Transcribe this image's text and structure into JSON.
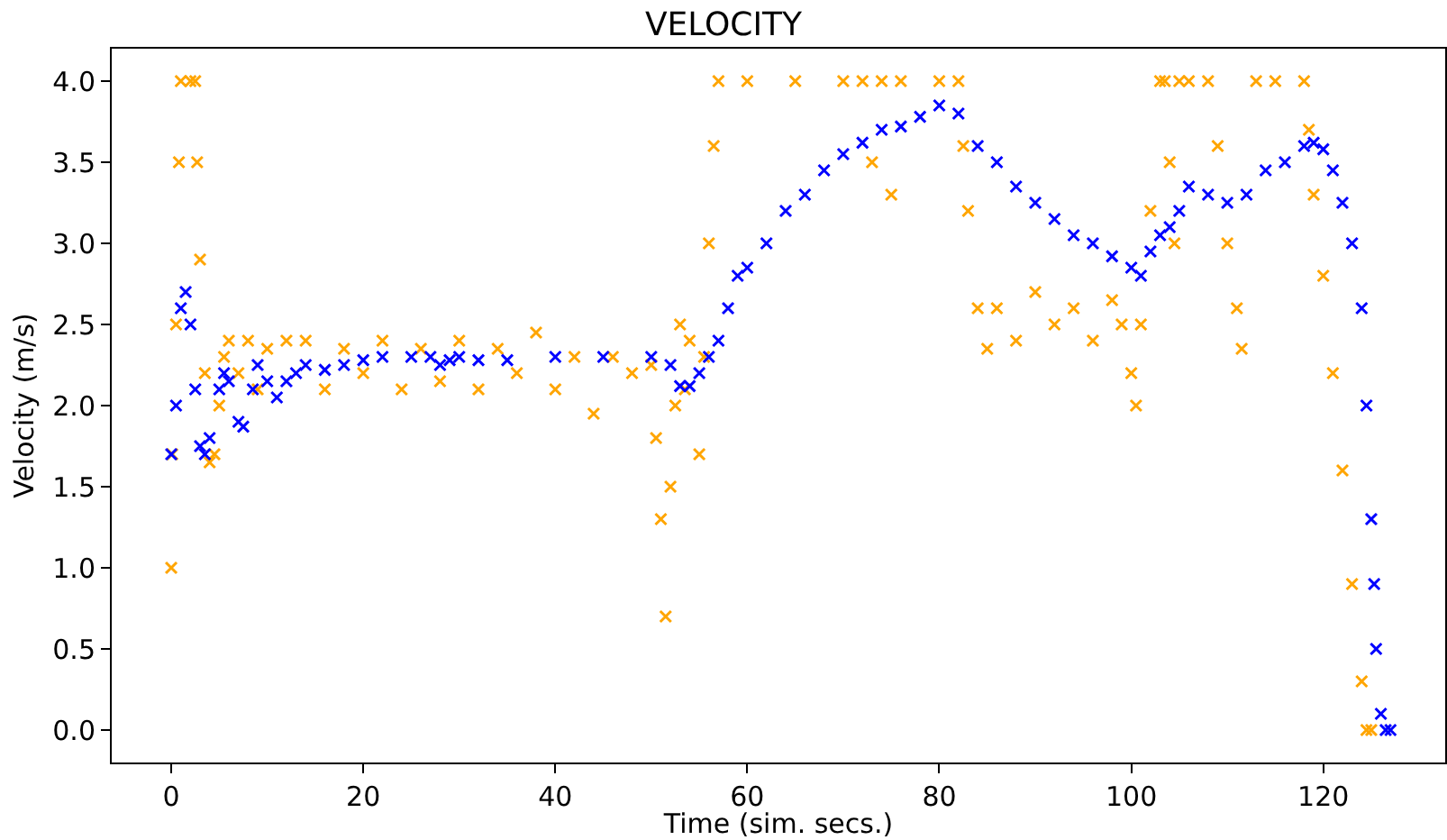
{
  "chart_data": {
    "type": "scatter",
    "title": "VELOCITY",
    "xlabel": "Time (sim. secs.)",
    "ylabel": "Velocity (m/s)",
    "marker": "cross",
    "grid": false,
    "xlim": [
      -6.2,
      132.7
    ],
    "xticks": [
      0,
      20,
      40,
      60,
      80,
      100,
      120
    ],
    "ylim": [
      -0.2,
      4.2
    ],
    "yticks": [
      {
        "value": 0,
        "label": "0.0"
      },
      {
        "value": 0.5,
        "label": "0.5"
      },
      {
        "value": 1,
        "label": "1.0"
      },
      {
        "value": 1.5,
        "label": "1.5"
      },
      {
        "value": 2,
        "label": "2.0"
      },
      {
        "value": 2.5,
        "label": "2.5"
      },
      {
        "value": 3,
        "label": "3.0"
      },
      {
        "value": 3.5,
        "label": "3.5"
      },
      {
        "value": 4,
        "label": "4.0"
      }
    ],
    "series": [
      {
        "color": "#ffa500",
        "x": [
          0,
          0.1,
          0.5,
          0.8,
          1,
          2,
          2.5,
          2.7,
          3,
          3.5,
          4,
          4.5,
          5,
          5.5,
          6,
          7,
          8,
          9,
          10,
          12,
          14,
          16,
          18,
          20,
          22,
          24,
          26,
          28,
          30,
          32,
          34,
          36,
          38,
          40,
          42,
          44,
          46,
          48,
          50,
          50.5,
          51,
          51.5,
          52,
          52.5,
          53,
          53.5,
          54,
          55,
          55.5,
          56,
          56.5,
          57,
          60,
          65,
          70,
          72,
          73,
          74,
          75,
          76,
          80,
          82,
          82.5,
          83,
          84,
          85,
          86,
          88,
          90,
          92,
          94,
          96,
          98,
          99,
          100,
          100.5,
          101,
          102,
          103,
          103.5,
          104,
          104.5,
          105,
          106,
          108,
          109,
          110,
          111,
          111.5,
          113,
          115,
          118,
          118.5,
          119,
          120,
          121,
          122,
          123,
          124,
          124.5,
          125
        ],
        "values": [
          1.0,
          1.7,
          2.5,
          3.5,
          4.0,
          4.0,
          4.0,
          3.5,
          2.9,
          2.2,
          1.65,
          1.7,
          2.0,
          2.3,
          2.4,
          2.2,
          2.4,
          2.1,
          2.35,
          2.4,
          2.4,
          2.1,
          2.35,
          2.2,
          2.4,
          2.1,
          2.35,
          2.15,
          2.4,
          2.1,
          2.35,
          2.2,
          2.45,
          2.1,
          2.3,
          1.95,
          2.3,
          2.2,
          2.25,
          1.8,
          1.3,
          0.7,
          1.5,
          2.0,
          2.5,
          2.1,
          2.4,
          1.7,
          2.3,
          3.0,
          3.6,
          4.0,
          4.0,
          4.0,
          4.0,
          4.0,
          3.5,
          4.0,
          3.3,
          4.0,
          4.0,
          4.0,
          3.6,
          3.2,
          2.6,
          2.35,
          2.6,
          2.4,
          2.7,
          2.5,
          2.6,
          2.4,
          2.65,
          2.5,
          2.2,
          2.0,
          2.5,
          3.2,
          4.0,
          4.0,
          3.5,
          3.0,
          4.0,
          4.0,
          4.0,
          3.6,
          3.0,
          2.6,
          2.35,
          4.0,
          4.0,
          4.0,
          3.7,
          3.3,
          2.8,
          2.2,
          1.6,
          0.9,
          0.3,
          0.0,
          0.0
        ]
      },
      {
        "color": "#0000ff",
        "x": [
          0,
          0.5,
          1,
          1.5,
          2,
          2.5,
          3,
          3.5,
          4,
          5,
          5.5,
          6,
          7,
          7.5,
          8.5,
          9,
          10,
          11,
          12,
          13,
          14,
          16,
          18,
          20,
          22,
          25,
          27,
          28,
          29,
          30,
          32,
          35,
          40,
          45,
          50,
          52,
          53,
          54,
          55,
          56,
          57,
          58,
          59,
          60,
          62,
          64,
          66,
          68,
          70,
          72,
          74,
          76,
          78,
          80,
          82,
          84,
          86,
          88,
          90,
          92,
          94,
          96,
          98,
          100,
          101,
          102,
          103,
          104,
          105,
          106,
          108,
          110,
          112,
          114,
          116,
          118,
          119,
          120,
          121,
          122,
          123,
          124,
          124.5,
          125,
          125.3,
          125.5,
          126,
          126.5,
          127
        ],
        "values": [
          1.7,
          2.0,
          2.6,
          2.7,
          2.5,
          2.1,
          1.75,
          1.7,
          1.8,
          2.1,
          2.2,
          2.15,
          1.9,
          1.87,
          2.1,
          2.25,
          2.15,
          2.05,
          2.15,
          2.2,
          2.25,
          2.22,
          2.25,
          2.28,
          2.3,
          2.3,
          2.3,
          2.25,
          2.28,
          2.3,
          2.28,
          2.28,
          2.3,
          2.3,
          2.3,
          2.25,
          2.12,
          2.12,
          2.2,
          2.3,
          2.4,
          2.6,
          2.8,
          2.85,
          3.0,
          3.2,
          3.3,
          3.45,
          3.55,
          3.62,
          3.7,
          3.72,
          3.78,
          3.85,
          3.8,
          3.6,
          3.5,
          3.35,
          3.25,
          3.15,
          3.05,
          3.0,
          2.92,
          2.85,
          2.8,
          2.95,
          3.05,
          3.1,
          3.2,
          3.35,
          3.3,
          3.25,
          3.3,
          3.45,
          3.5,
          3.6,
          3.62,
          3.58,
          3.45,
          3.25,
          3.0,
          2.6,
          2.0,
          1.3,
          0.9,
          0.5,
          0.1,
          0.0,
          0.0
        ]
      }
    ]
  }
}
